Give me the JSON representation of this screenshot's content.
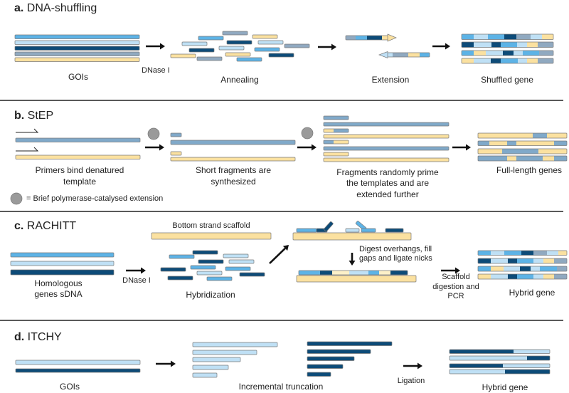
{
  "palette": {
    "blue": "#5db3e6",
    "light": "#bfe0f5",
    "navy": "#0d4b78",
    "grey": "#90a9c0",
    "yellow": "#fbe1a0",
    "pale": "#fdf0c8",
    "step_blue": "#80a9c9",
    "circle": "#9a9a9a",
    "stroke": "#7a7a7a",
    "arrow": "#111111"
  },
  "panels": {
    "a": {
      "letter": "a.",
      "title": "DNA-shuffling",
      "labels": {
        "gois": "GOIs",
        "dnase": "DNase I",
        "annealing": "Annealing",
        "extension": "Extension",
        "shuffled": "Shuffled gene"
      }
    },
    "b": {
      "letter": "b.",
      "title": "StEP",
      "labels": {
        "primers_1": "Primers bind denatured",
        "primers_2": "template",
        "short_1": "Short fragments are",
        "short_2": "synthesized",
        "frag_1": "Fragments randomly prime",
        "frag_2": "the templates and are",
        "frag_3": "extended further",
        "full": "Full-length genes",
        "legend": "= Brief polymerase-catalysed extension"
      }
    },
    "c": {
      "letter": "c.",
      "title": "RACHITT",
      "labels": {
        "scaffold": "Bottom strand scaffold",
        "homol_1": "Homologous",
        "homol_2": "genes sDNA",
        "dnase": "DNase I",
        "hybridization": "Hybridization",
        "digest_1": "Digest overhangs, fill",
        "digest_2": "gaps and ligate nicks",
        "scaf_1": "Scaffold",
        "scaf_2": "digestion and",
        "scaf_3": "PCR",
        "hybrid": "Hybrid gene"
      }
    },
    "d": {
      "letter": "d.",
      "title": "ITCHY",
      "labels": {
        "gois": "GOIs",
        "truncation": "Incremental truncation",
        "ligation": "Ligation",
        "hybrid": "Hybrid gene"
      }
    }
  }
}
